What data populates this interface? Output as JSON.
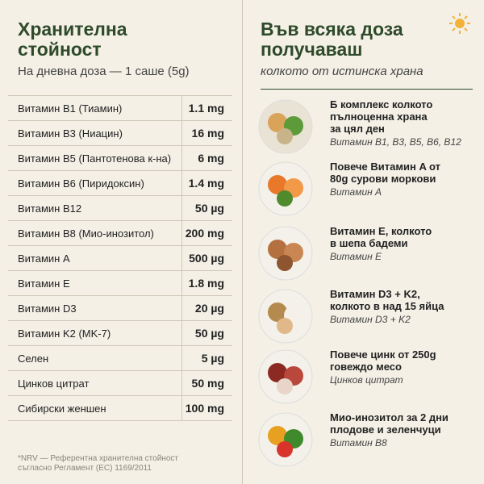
{
  "left": {
    "title": [
      "Хранителна",
      "стойност"
    ],
    "subtitle": "На дневна доза — 1 саше (5g)",
    "rows": [
      [
        "Витамин B1 (Тиамин)",
        "1.1 mg"
      ],
      [
        "Витамин B3 (Ниацин)",
        "16 mg"
      ],
      [
        "Витамин B5 (Пантотенова к-на)",
        "6 mg"
      ],
      [
        "Витамин B6 (Пиридоксин)",
        "1.4 mg"
      ],
      [
        "Витамин B12",
        "50 µg"
      ],
      [
        "Витамин B8 (Мио-инозитол)",
        "200 mg"
      ],
      [
        "Витамин A",
        "500 µg"
      ],
      [
        "Витамин E",
        "1.8 mg"
      ],
      [
        "Витамин D3",
        "20 µg"
      ],
      [
        "Витамин K2 (MK-7)",
        "50 µg"
      ],
      [
        "Селен",
        "5 µg"
      ],
      [
        "Цинков цитрат",
        "50 mg"
      ],
      [
        "Сибирски женшен",
        "100 mg"
      ]
    ],
    "footnote": [
      "*NRV — Референтна хранителна стойност",
      "съгласно Регламент (ЕС) 1169/2011"
    ]
  },
  "right": {
    "title": [
      "Във всяка доза",
      "получаваш"
    ],
    "subtitle": "колкото от истинска храна",
    "items": [
      {
        "title": [
          "Б комплекс колкото",
          "пълноценна храна",
          "за цял ден"
        ],
        "sub": "Витамин B1, B3, B5, B6, B12"
      },
      {
        "title": [
          "Повече Витамин A от",
          "80g сурови моркови"
        ],
        "sub": "Витамин A"
      },
      {
        "title": [
          "Витамин E, колкото",
          "в шепа бадеми"
        ],
        "sub": "Витамин E"
      },
      {
        "title": [
          "Витамин D3 + K2,",
          "колкото в над 15 яйца"
        ],
        "sub": "Витамин D3 + K2"
      },
      {
        "title": [
          "Повече цинк от 250g",
          "говеждо месо"
        ],
        "sub": "Цинков цитрат"
      },
      {
        "title": [
          "Мио-инозитол за 2 дни",
          "плодове и зеленчуци"
        ],
        "sub": "Витамин B8"
      }
    ]
  }
}
